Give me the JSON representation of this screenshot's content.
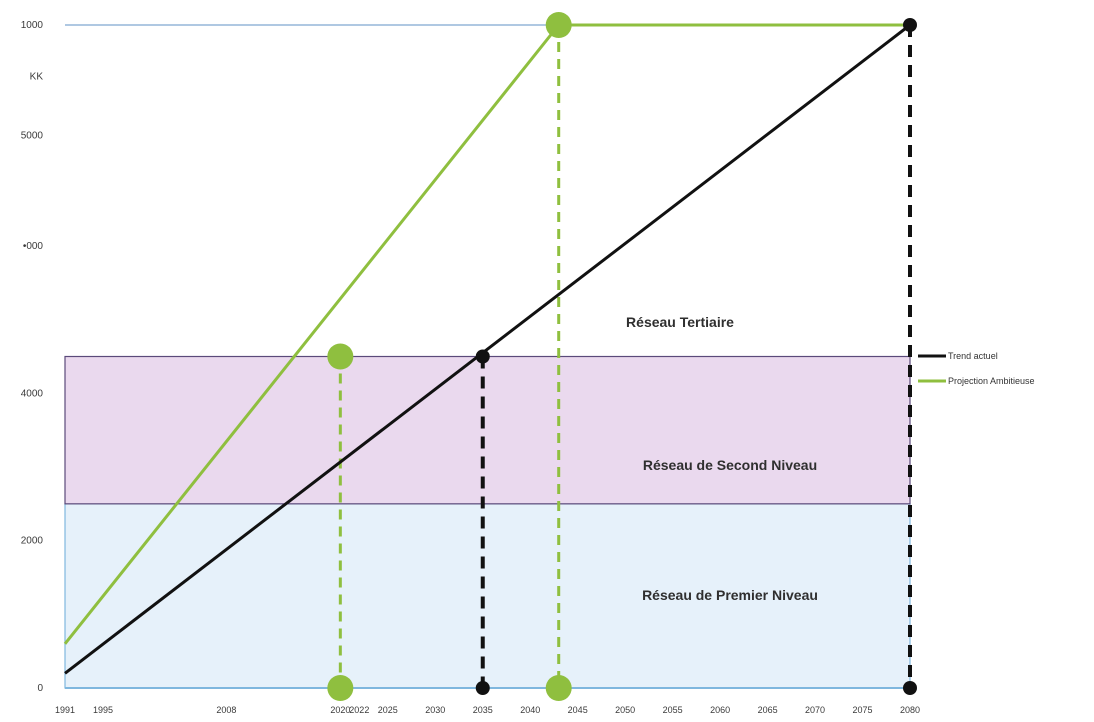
{
  "chart_data": {
    "type": "line",
    "title": "",
    "xlabel": "",
    "ylabel": "",
    "ylim": [
      0,
      9000
    ],
    "yticks": [
      "0",
      "2000",
      "4000",
      "•000",
      "5000",
      "KK",
      "1000"
    ],
    "xtick_labels": [
      "1991",
      "1995",
      "2008",
      "2020",
      "2022",
      "2025",
      "2030",
      "2035",
      "2040",
      "2045",
      "2050",
      "2055",
      "2060",
      "2065",
      "2070",
      "2075",
      "2080"
    ],
    "x": [
      1991,
      1995,
      2008,
      2020,
      2022,
      2025,
      2030,
      2035,
      2040,
      2045,
      2050,
      2055,
      2060,
      2065,
      2070,
      2075,
      2080
    ],
    "zones": [
      {
        "label": "Réseau de Premier Niveau",
        "from": 0,
        "to": 2500,
        "color": "#e6f1fa",
        "edge": "#7fb7de"
      },
      {
        "label": "Réseau de Second Niveau",
        "from": 2500,
        "to": 4500,
        "color": "#ead9ee",
        "edge": "#5a4a7a"
      },
      {
        "label": "Réseau Tertiaire",
        "from": 4500,
        "to": 9000,
        "color": "#ffffff",
        "edge": "#cccccc"
      }
    ],
    "series": [
      {
        "name": "Trend actuel",
        "color": "#111111",
        "points": [
          [
            1991,
            200
          ],
          [
            2080,
            9000
          ]
        ],
        "markers": [
          [
            2035,
            4500
          ],
          [
            2035,
            0
          ],
          [
            2080,
            9000
          ],
          [
            2080,
            0
          ]
        ]
      },
      {
        "name": "Projection Ambitieuse",
        "color": "#8fbf3f",
        "points": [
          [
            1991,
            600
          ],
          [
            2043,
            9000
          ],
          [
            2080,
            9000
          ]
        ],
        "markers": [
          [
            2020,
            4500
          ],
          [
            2020,
            0
          ],
          [
            2043,
            9000
          ],
          [
            2043,
            0
          ]
        ]
      }
    ],
    "legend_position": "right"
  }
}
